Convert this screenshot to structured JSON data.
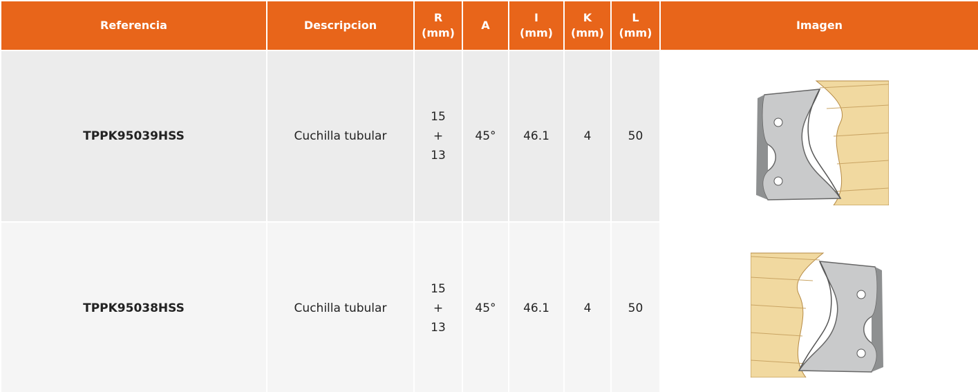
{
  "table": {
    "header": [
      [
        "Referencia"
      ],
      [
        "Descripcion"
      ],
      [
        "R",
        "(mm)"
      ],
      [
        "A"
      ],
      [
        "I",
        "(mm)"
      ],
      [
        "K",
        "(mm)"
      ],
      [
        "L",
        "(mm)"
      ],
      [
        "Imagen"
      ]
    ],
    "rows": [
      [
        "TPPK95039HSS",
        "Cuchilla tubular",
        [
          "15",
          "+",
          "13"
        ],
        "45°",
        "46.1",
        "4",
        "50"
      ],
      [
        "TPPK95038HSS",
        "Cuchilla tubular",
        [
          "15",
          "+",
          "13"
        ],
        "45°",
        "46.1",
        "4",
        "50"
      ]
    ]
  }
}
